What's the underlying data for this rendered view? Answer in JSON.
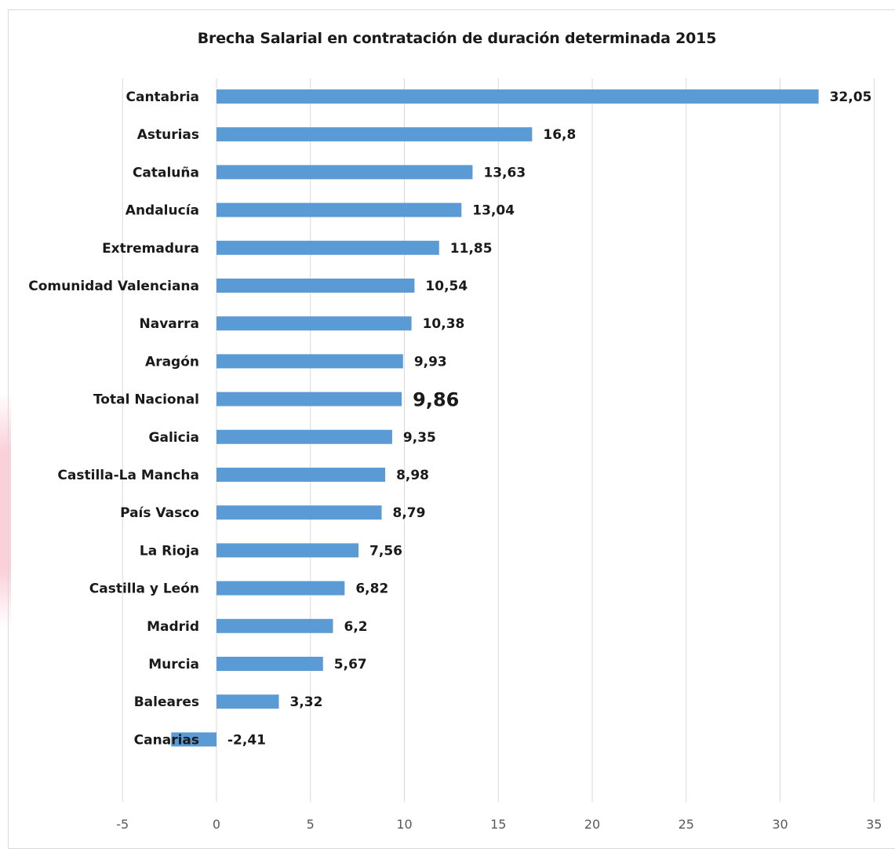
{
  "chart_data": {
    "type": "bar",
    "orientation": "horizontal",
    "title": "Brecha Salarial  en contratación de duración determinada 2015",
    "xlabel": "",
    "ylabel": "",
    "xlim": [
      -5,
      35
    ],
    "x_ticks": [
      -5,
      0,
      5,
      10,
      15,
      20,
      25,
      30,
      35
    ],
    "grid": true,
    "legend": "none",
    "bar_color": "#5b9bd5",
    "highlighted_category": "Total Nacional",
    "categories": [
      "Cantabria",
      "Asturias",
      "Cataluña",
      "Andalucía",
      "Extremadura",
      "Comunidad Valenciana",
      "Navarra",
      "Aragón",
      "Total Nacional",
      "Galicia",
      "Castilla-La Mancha",
      "País Vasco",
      "La Rioja",
      "Castilla y León",
      "Madrid",
      "Murcia",
      "Baleares",
      "Canarias"
    ],
    "values": [
      32.05,
      16.8,
      13.63,
      13.04,
      11.85,
      10.54,
      10.38,
      9.93,
      9.86,
      9.35,
      8.98,
      8.79,
      7.56,
      6.82,
      6.2,
      5.67,
      3.32,
      -2.41
    ],
    "value_labels": [
      "32,05",
      "16,8",
      "13,63",
      "13,04",
      "11,85",
      "10,54",
      "10,38",
      "9,93",
      "9,86",
      "9,35",
      "8,98",
      "8,79",
      "7,56",
      "6,82",
      "6,2",
      "5,67",
      "3,32",
      "-2,41"
    ]
  }
}
